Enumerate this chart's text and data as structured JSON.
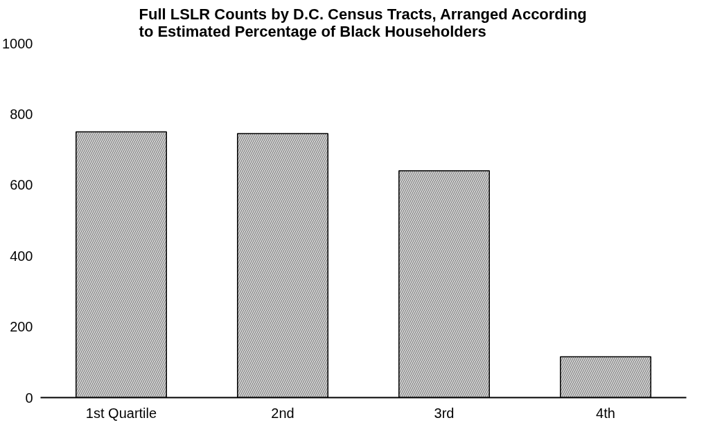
{
  "chart_data": {
    "type": "bar",
    "title": "Full LSLR Counts by D.C. Census Tracts, Arranged According to Estimated Percentage of Black Householders",
    "categories": [
      "1st Quartile",
      "2nd",
      "3rd",
      "4th"
    ],
    "values": [
      750,
      745,
      640,
      115
    ],
    "color": "#d0d0d0",
    "ylim": [
      0,
      1000
    ],
    "yticks": [
      0,
      200,
      400,
      600,
      800,
      1000
    ],
    "grid": false
  }
}
